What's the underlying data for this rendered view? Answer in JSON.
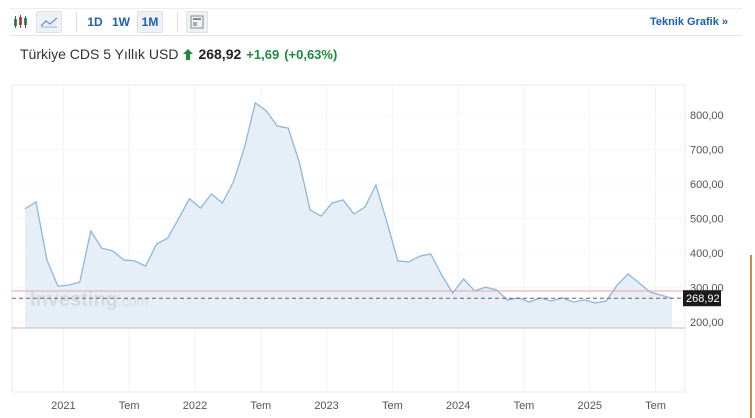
{
  "toolbar": {
    "intervals": [
      "1D",
      "1W",
      "1M"
    ],
    "selected": "1M",
    "teknik_label": "Teknik Grafik »"
  },
  "header": {
    "title": "Türkiye CDS 5 Yıllık USD",
    "price": "268,92",
    "change": "+1,69",
    "change_pct": "(+0,63%)"
  },
  "colors": {
    "line": "#8fb6dc",
    "fill": "#e6eff8",
    "up": "#1e8a3c",
    "accent": "#1a5fb4"
  },
  "watermark": "Investing.com",
  "chart_data": {
    "type": "area",
    "y_ticks": [
      "800,00",
      "700,00",
      "600,00",
      "500,00",
      "400,00",
      "300,00",
      "200,00"
    ],
    "y_tick_values": [
      800,
      700,
      600,
      500,
      400,
      300,
      200
    ],
    "ylim": [
      95,
      880
    ],
    "x_labels": [
      "2021",
      "Tem",
      "2022",
      "Tem",
      "2023",
      "Tem",
      "2024",
      "Tem",
      "2025",
      "Tem"
    ],
    "x_label_months": [
      4,
      10,
      16,
      22,
      28,
      34,
      40,
      46,
      52,
      58
    ],
    "current_value": 268.92,
    "current_label": "268,92",
    "reference_line": 290,
    "values": [
      528,
      548,
      380,
      304,
      307,
      316,
      464,
      414,
      406,
      380,
      377,
      362,
      426,
      443,
      499,
      557,
      530,
      571,
      545,
      606,
      704,
      835,
      812,
      768,
      762,
      664,
      525,
      507,
      545,
      554,
      513,
      533,
      597,
      490,
      377,
      374,
      391,
      397,
      336,
      284,
      325,
      290,
      301,
      293,
      264,
      270,
      258,
      270,
      261,
      270,
      258,
      264,
      255,
      261,
      307,
      339,
      313,
      287,
      278,
      269
    ]
  }
}
